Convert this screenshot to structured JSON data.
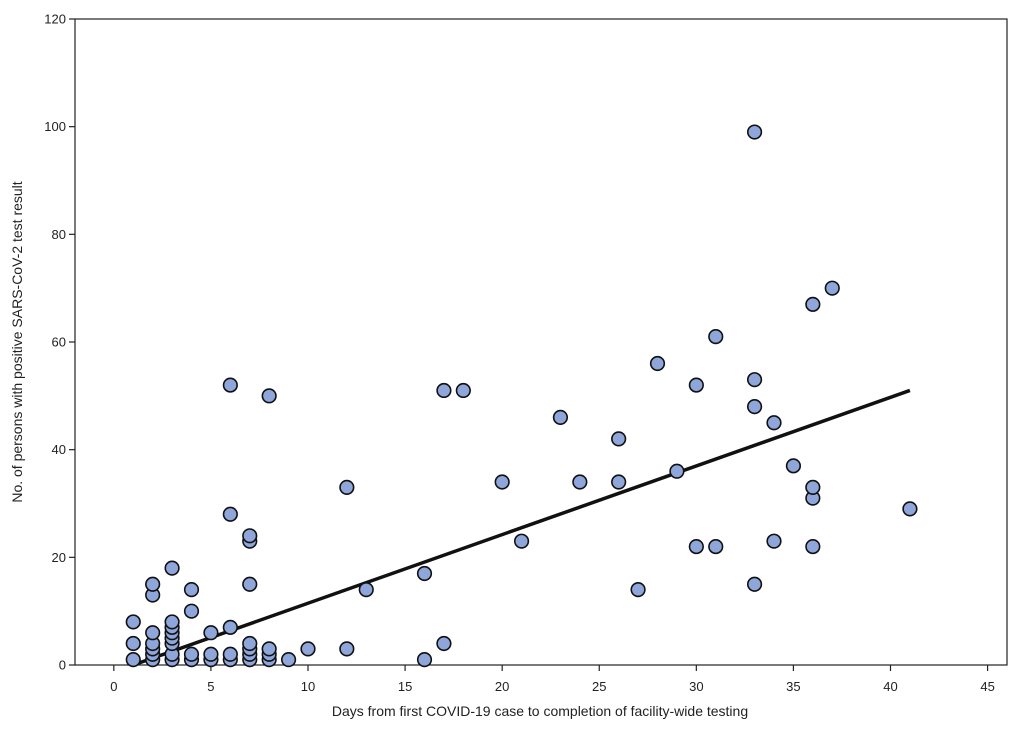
{
  "chart_data": {
    "type": "scatter",
    "title": "",
    "xlabel": "Days from first COVID-19 case to completion of facility-wide testing",
    "ylabel": "No. of persons with positive SARS-CoV-2 test result",
    "xlim": [
      -2,
      46
    ],
    "ylim": [
      0,
      120
    ],
    "xticks": [
      0,
      5,
      10,
      15,
      20,
      25,
      30,
      35,
      40,
      45
    ],
    "yticks": [
      0,
      20,
      40,
      60,
      80,
      100,
      120
    ],
    "grid": false,
    "legend": "none",
    "point_color": "#8FA6DA",
    "point_edge_color": "#111111",
    "trendline": {
      "x": [
        1,
        41
      ],
      "y": [
        0,
        51
      ],
      "color": "#111111"
    },
    "points": [
      [
        1,
        1
      ],
      [
        1,
        4
      ],
      [
        1,
        8
      ],
      [
        2,
        1
      ],
      [
        2,
        2
      ],
      [
        2,
        3
      ],
      [
        2,
        4
      ],
      [
        2,
        6
      ],
      [
        2,
        13
      ],
      [
        2,
        15
      ],
      [
        3,
        1
      ],
      [
        3,
        2
      ],
      [
        3,
        4
      ],
      [
        3,
        5
      ],
      [
        3,
        6
      ],
      [
        3,
        7
      ],
      [
        3,
        8
      ],
      [
        3,
        18
      ],
      [
        4,
        1
      ],
      [
        4,
        2
      ],
      [
        4,
        10
      ],
      [
        4,
        14
      ],
      [
        5,
        1
      ],
      [
        5,
        2
      ],
      [
        5,
        6
      ],
      [
        6,
        1
      ],
      [
        6,
        2
      ],
      [
        6,
        7
      ],
      [
        6,
        28
      ],
      [
        6,
        52
      ],
      [
        7,
        1
      ],
      [
        7,
        2
      ],
      [
        7,
        3
      ],
      [
        7,
        4
      ],
      [
        7,
        15
      ],
      [
        7,
        23
      ],
      [
        7,
        24
      ],
      [
        8,
        1
      ],
      [
        8,
        2
      ],
      [
        8,
        3
      ],
      [
        8,
        50
      ],
      [
        9,
        1
      ],
      [
        10,
        3
      ],
      [
        12,
        3
      ],
      [
        12,
        33
      ],
      [
        13,
        14
      ],
      [
        16,
        1
      ],
      [
        16,
        17
      ],
      [
        17,
        4
      ],
      [
        17,
        51
      ],
      [
        18,
        51
      ],
      [
        20,
        34
      ],
      [
        21,
        23
      ],
      [
        23,
        46
      ],
      [
        24,
        34
      ],
      [
        26,
        34
      ],
      [
        26,
        42
      ],
      [
        27,
        14
      ],
      [
        28,
        56
      ],
      [
        29,
        36
      ],
      [
        30,
        22
      ],
      [
        30,
        52
      ],
      [
        31,
        22
      ],
      [
        31,
        61
      ],
      [
        33,
        15
      ],
      [
        33,
        48
      ],
      [
        33,
        53
      ],
      [
        33,
        99
      ],
      [
        34,
        23
      ],
      [
        34,
        45
      ],
      [
        35,
        37
      ],
      [
        36,
        22
      ],
      [
        36,
        31
      ],
      [
        36,
        33
      ],
      [
        36,
        67
      ],
      [
        37,
        70
      ],
      [
        41,
        29
      ]
    ]
  }
}
